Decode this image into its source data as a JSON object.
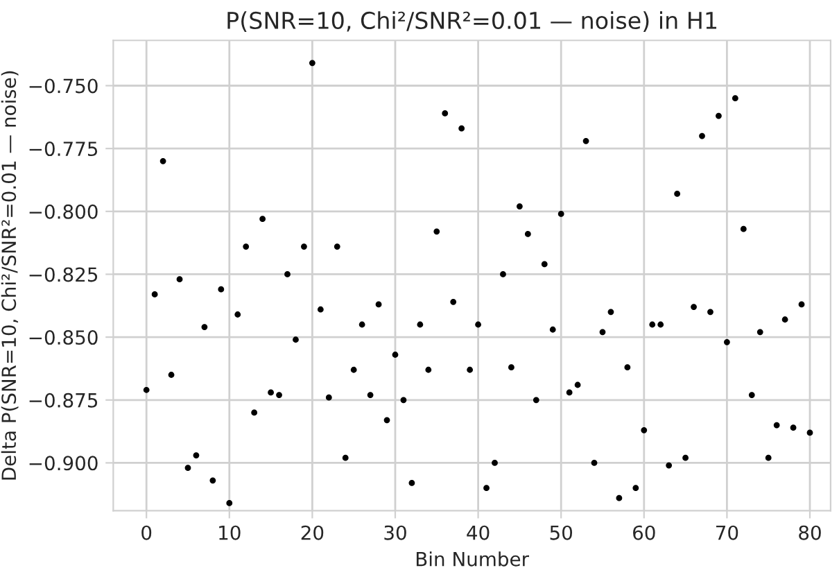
{
  "chart_data": {
    "type": "scatter",
    "title": "P(SNR=10, Chi²/SNR²=0.01 — noise) in H1",
    "xlabel": "Bin Number",
    "ylabel": "Delta P(SNR=10, Chi²/SNR²=0.01 — noise)",
    "x": [
      0,
      1,
      2,
      3,
      4,
      5,
      6,
      7,
      8,
      9,
      10,
      11,
      12,
      13,
      14,
      15,
      16,
      17,
      18,
      19,
      20,
      21,
      22,
      23,
      24,
      25,
      26,
      27,
      28,
      29,
      30,
      31,
      32,
      33,
      34,
      35,
      36,
      37,
      38,
      39,
      40,
      41,
      42,
      43,
      44,
      45,
      46,
      47,
      48,
      49,
      50,
      51,
      52,
      53,
      54,
      55,
      56,
      57,
      58,
      59,
      60,
      61,
      62,
      63,
      64,
      65,
      66,
      67,
      68,
      69,
      70,
      71,
      72,
      73,
      74,
      75,
      76,
      77,
      78,
      79,
      80
    ],
    "series": [
      {
        "color": "#000000",
        "values": [
          -0.871,
          -0.833,
          -0.78,
          -0.865,
          -0.827,
          -0.902,
          -0.897,
          -0.846,
          -0.907,
          -0.831,
          -0.916,
          -0.841,
          -0.814,
          -0.88,
          -0.803,
          -0.872,
          -0.873,
          -0.825,
          -0.851,
          -0.814,
          -0.741,
          -0.839,
          -0.874,
          -0.814,
          -0.898,
          -0.863,
          -0.845,
          -0.873,
          -0.837,
          -0.883,
          -0.857,
          -0.875,
          -0.908,
          -0.845,
          -0.863,
          -0.808,
          -0.761,
          -0.836,
          -0.767,
          -0.863,
          -0.845,
          -0.91,
          -0.9,
          -0.825,
          -0.862,
          -0.798,
          -0.809,
          -0.875,
          -0.821,
          -0.847,
          -0.801,
          -0.872,
          -0.869,
          -0.772,
          -0.9,
          -0.848,
          -0.84,
          -0.914,
          -0.862,
          -0.91,
          -0.887,
          -0.845,
          -0.845,
          -0.901,
          -0.793,
          -0.898,
          -0.838,
          -0.77,
          -0.84,
          -0.762,
          -0.852,
          -0.755,
          -0.807,
          -0.873,
          -0.848,
          -0.898,
          -0.885,
          -0.843,
          -0.886,
          -0.837,
          -0.888
        ]
      }
    ],
    "xlim": [
      -4,
      82.5
    ],
    "ylim": [
      -0.919,
      -0.732
    ],
    "xticks": [
      0,
      10,
      20,
      30,
      40,
      50,
      60,
      70,
      80
    ],
    "yticks": [
      {
        "value": -0.75,
        "label": "−0.750"
      },
      {
        "value": -0.775,
        "label": "−0.775"
      },
      {
        "value": -0.8,
        "label": "−0.800"
      },
      {
        "value": -0.825,
        "label": "−0.825"
      },
      {
        "value": -0.85,
        "label": "−0.850"
      },
      {
        "value": -0.875,
        "label": "−0.875"
      },
      {
        "value": -0.9,
        "label": "−0.900"
      }
    ],
    "grid": true,
    "marker": "circle"
  }
}
